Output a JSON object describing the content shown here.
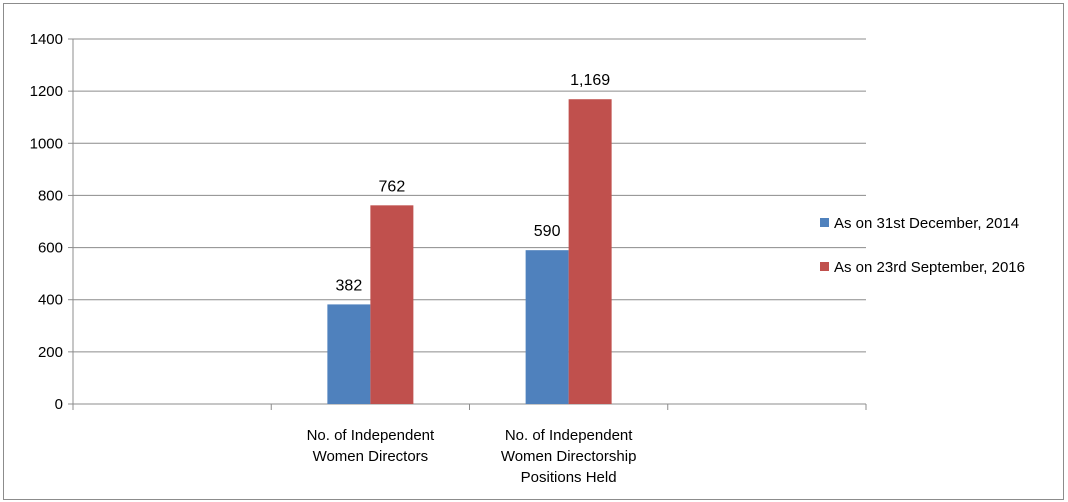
{
  "chart_data": {
    "type": "bar",
    "title": "",
    "xlabel": "",
    "ylabel": "",
    "ylim": [
      0,
      1400
    ],
    "yticks": [
      "0",
      "200",
      "400",
      "600",
      "800",
      "1000",
      "1200",
      "1400"
    ],
    "grid": true,
    "legend_position": "right",
    "categories": [
      "",
      [
        "No. of Independent",
        "Women Directors"
      ],
      [
        "No. of Independent",
        "Women Directorship",
        "Positions Held"
      ],
      ""
    ],
    "series": [
      {
        "name": "As on 31st December, 2014",
        "color": "#4f81bd",
        "values": [
          null,
          382,
          590,
          null
        ],
        "labels": [
          "",
          "382",
          "590",
          ""
        ]
      },
      {
        "name": "As on 23rd September, 2016",
        "color": "#c0504d",
        "values": [
          null,
          762,
          1169,
          null
        ],
        "labels": [
          "",
          "762",
          "1,169",
          ""
        ]
      }
    ]
  }
}
